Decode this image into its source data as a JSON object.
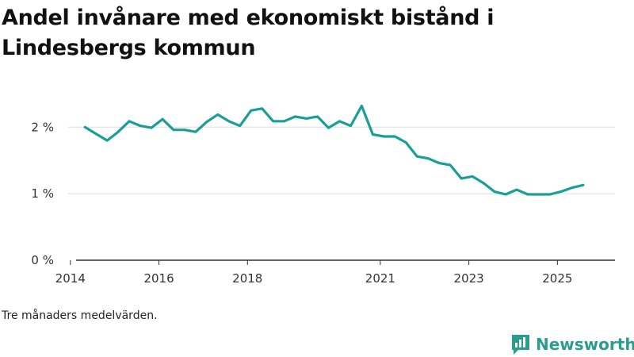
{
  "title": "Andel invånare med ekonomiskt bistånd i Lindesbergs kommun",
  "caption": "Tre månaders medelvärden.",
  "brand": {
    "name": "Newsworthy",
    "icon": "newsworthy-logo-icon"
  },
  "colors": {
    "line": "#1a9e98",
    "grid": "#dddddd",
    "axis": "#333333",
    "brand": "#2a9d8f"
  },
  "chart_data": {
    "type": "line",
    "title": "Andel invånare med ekonomiskt bistånd i Lindesbergs kommun",
    "xlabel": "",
    "ylabel": "",
    "xlim": [
      2013.95,
      2026.3
    ],
    "ylim": [
      0,
      2.6
    ],
    "x_ticks": [
      {
        "value": 2014.0,
        "label": "2014"
      },
      {
        "value": 2016.0,
        "label": "2016"
      },
      {
        "value": 2018.0,
        "label": "2018"
      },
      {
        "value": 2021.0,
        "label": "2021"
      },
      {
        "value": 2023.0,
        "label": "2023"
      },
      {
        "value": 2025.0,
        "label": "2025"
      }
    ],
    "y_ticks": [
      {
        "value": 0,
        "label": "0 %"
      },
      {
        "value": 1,
        "label": "1 %"
      },
      {
        "value": 2,
        "label": "2 %"
      }
    ],
    "grid": true,
    "series": [
      {
        "name": "Andel invånare med ekonomiskt bistånd",
        "x": [
          2014.33,
          2014.58,
          2014.83,
          2015.08,
          2015.33,
          2015.58,
          2015.83,
          2016.08,
          2016.33,
          2016.58,
          2016.83,
          2017.08,
          2017.33,
          2017.58,
          2017.83,
          2018.08,
          2018.33,
          2018.58,
          2018.83,
          2019.08,
          2019.33,
          2019.58,
          2019.83,
          2020.08,
          2020.33,
          2020.58,
          2020.83,
          2021.08,
          2021.33,
          2021.58,
          2021.83,
          2022.08,
          2022.33,
          2022.58,
          2022.83,
          2023.08,
          2023.33,
          2023.58,
          2023.83,
          2024.08,
          2024.33,
          2024.58,
          2024.83,
          2025.08,
          2025.33,
          2025.58
        ],
        "values": [
          2.0,
          1.9,
          1.8,
          1.93,
          2.09,
          2.02,
          1.99,
          2.12,
          1.96,
          1.96,
          1.93,
          2.08,
          2.19,
          2.09,
          2.02,
          2.25,
          2.28,
          2.09,
          2.09,
          2.16,
          2.13,
          2.16,
          1.99,
          2.09,
          2.02,
          2.32,
          1.89,
          1.86,
          1.86,
          1.77,
          1.56,
          1.53,
          1.46,
          1.43,
          1.23,
          1.26,
          1.16,
          1.03,
          0.99,
          1.06,
          0.99,
          0.99,
          0.99,
          1.03,
          1.09,
          1.13
        ]
      }
    ]
  }
}
